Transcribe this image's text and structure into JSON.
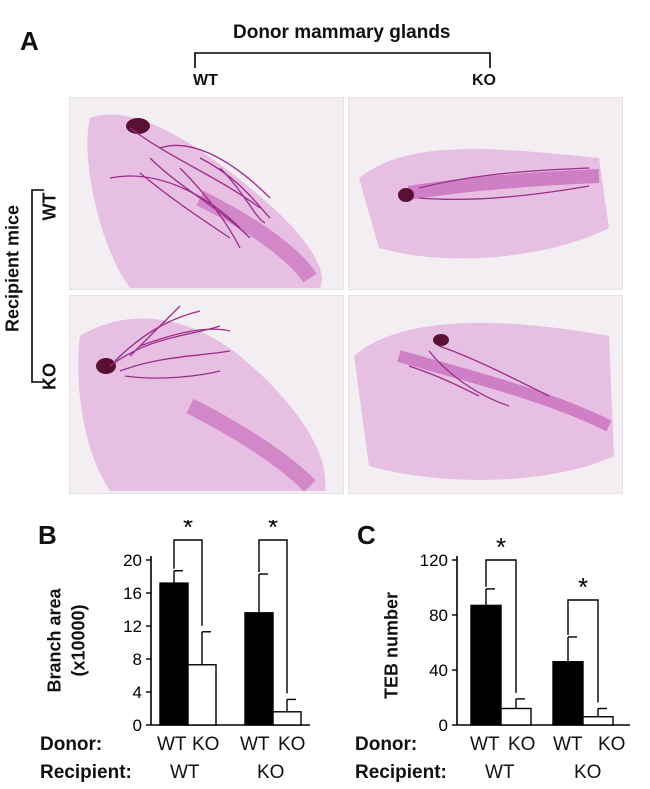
{
  "panelA": {
    "letter": "A",
    "donor_header": "Donor mammary glands",
    "donor_wt": "WT",
    "donor_ko": "KO",
    "recipient_header": "Recipient mice",
    "recipient_wt": "WT",
    "recipient_ko": "KO",
    "image_colors": {
      "tissue": "#d98fd0",
      "duct": "#9c2d8a",
      "node": "#5a1030",
      "background": "#f3eef2"
    }
  },
  "panelB": {
    "letter": "B",
    "ylabel_line1": "Branch area",
    "ylabel_line2": "(x10000)"
  },
  "panelC": {
    "letter": "C",
    "ylabel": "TEB number"
  },
  "rows": {
    "donor_label": "Donor:",
    "recipient_label": "Recipient:",
    "B_donor": [
      "WT",
      "KO",
      "WT",
      "KO"
    ],
    "B_recipient": [
      "WT",
      "KO"
    ],
    "C_donor": [
      "WT",
      "KO",
      "WT",
      "KO"
    ],
    "C_recipient": [
      "WT",
      "KO"
    ]
  },
  "chart_data": [
    {
      "type": "bar",
      "panel": "B",
      "ylabel": "Branch area (x10000)",
      "ylim": [
        0,
        20
      ],
      "yticks": [
        0,
        4,
        8,
        12,
        16,
        20
      ],
      "groups": [
        "WT",
        "KO"
      ],
      "categories": [
        "WT",
        "KO",
        "WT",
        "KO"
      ],
      "values": [
        17.2,
        7.3,
        13.6,
        1.6
      ],
      "errors": [
        1.5,
        4.0,
        4.7,
        1.5
      ],
      "fills": [
        "#000000",
        "#ffffff",
        "#000000",
        "#ffffff"
      ],
      "significance": [
        "*",
        "*"
      ]
    },
    {
      "type": "bar",
      "panel": "C",
      "ylabel": "TEB number",
      "ylim": [
        0,
        120
      ],
      "yticks": [
        0,
        40,
        80,
        120
      ],
      "groups": [
        "WT",
        "KO"
      ],
      "categories": [
        "WT",
        "KO",
        "WT",
        "KO"
      ],
      "values": [
        87,
        12,
        46,
        6
      ],
      "errors": [
        12,
        7,
        18,
        6
      ],
      "fills": [
        "#000000",
        "#ffffff",
        "#000000",
        "#ffffff"
      ],
      "significance": [
        "*",
        "*"
      ]
    }
  ]
}
